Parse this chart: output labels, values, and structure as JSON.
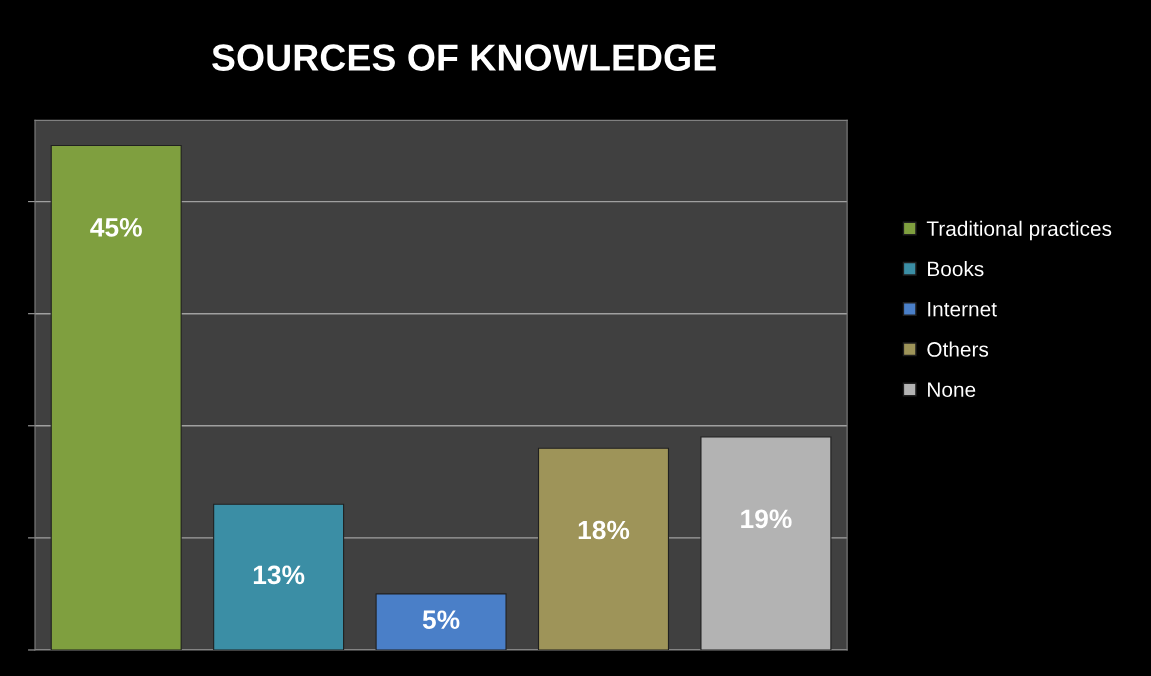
{
  "chart_data": {
    "type": "bar",
    "title": "SOURCES OF KNOWLEDGE",
    "categories": [
      null
    ],
    "series": [
      {
        "name": "Traditional practices",
        "color": "#7f9f3f",
        "values": [
          45
        ],
        "value_labels": [
          "45%"
        ]
      },
      {
        "name": "Books",
        "color": "#3b8ea5",
        "values": [
          13
        ],
        "value_labels": [
          "13%"
        ]
      },
      {
        "name": "Internet",
        "color": "#4a7fc8",
        "values": [
          5
        ],
        "value_labels": [
          "5%"
        ]
      },
      {
        "name": "Others",
        "color": "#9e9459",
        "values": [
          18
        ],
        "value_labels": [
          "18%"
        ]
      },
      {
        "name": "None",
        "color": "#b3b3b3",
        "values": [
          19
        ],
        "value_labels": [
          "19%"
        ]
      }
    ],
    "grid": "y",
    "legend": "right"
  }
}
